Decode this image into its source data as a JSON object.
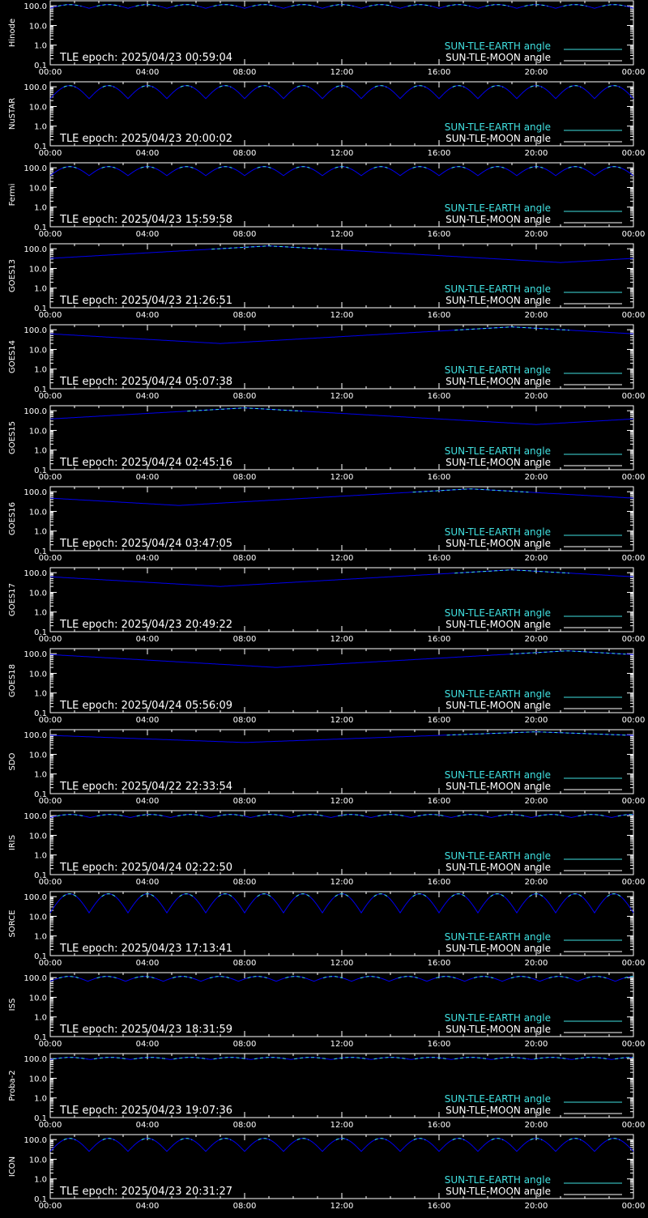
{
  "colors": {
    "background": "#000000",
    "axes": "#ffffff",
    "earth": "#40e0e0",
    "moon": "#ffffff",
    "curve": "#0000ee"
  },
  "chart_data": [
    {
      "type": "line",
      "ylabel": "Hinode",
      "epoch": "TLE epoch: 2025/04/23 00:59:04",
      "kind": "periodic",
      "period_h": 1.6,
      "ymin": 75,
      "ymax": 115
    },
    {
      "type": "line",
      "ylabel": "NuSTAR",
      "epoch": "TLE epoch: 2025/04/23 20:00:02",
      "kind": "periodic",
      "period_h": 1.6,
      "ymin": 25,
      "ymax": 115
    },
    {
      "type": "line",
      "ylabel": "Fermi",
      "epoch": "TLE epoch: 2025/04/23 15:59:58",
      "kind": "periodic",
      "period_h": 1.6,
      "ymin": 40,
      "ymax": 115
    },
    {
      "type": "line",
      "ylabel": "GOES13",
      "epoch": "TLE epoch: 2025/04/23 21:26:51",
      "kind": "daily",
      "min_h": 21.0,
      "ymin": 20,
      "ymax": 140
    },
    {
      "type": "line",
      "ylabel": "GOES14",
      "epoch": "TLE epoch: 2025/04/24 05:07:38",
      "kind": "daily",
      "min_h": 7.0,
      "ymin": 20,
      "ymax": 140
    },
    {
      "type": "line",
      "ylabel": "GOES15",
      "epoch": "TLE epoch: 2025/04/24 02:45:16",
      "kind": "daily",
      "min_h": 20.0,
      "ymin": 20,
      "ymax": 140
    },
    {
      "type": "line",
      "ylabel": "GOES16",
      "epoch": "TLE epoch: 2025/04/24 03:47:05",
      "kind": "daily",
      "min_h": 5.3,
      "ymin": 20,
      "ymax": 140
    },
    {
      "type": "line",
      "ylabel": "GOES17",
      "epoch": "TLE epoch: 2025/04/23 20:49:22",
      "kind": "daily",
      "min_h": 7.0,
      "ymin": 20,
      "ymax": 140
    },
    {
      "type": "line",
      "ylabel": "GOES18",
      "epoch": "TLE epoch: 2025/04/24 05:56:09",
      "kind": "daily",
      "min_h": 9.3,
      "ymin": 20,
      "ymax": 140
    },
    {
      "type": "line",
      "ylabel": "SDO",
      "epoch": "TLE epoch: 2025/04/22 22:33:54",
      "kind": "daily",
      "min_h": 8.0,
      "ymin": 40,
      "ymax": 140
    },
    {
      "type": "line",
      "ylabel": "IRIS",
      "epoch": "TLE epoch: 2025/04/24 02:22:50",
      "kind": "periodic",
      "period_h": 1.65,
      "ymin": 80,
      "ymax": 115
    },
    {
      "type": "line",
      "ylabel": "SORCE",
      "epoch": "TLE epoch: 2025/04/23 17:13:41",
      "kind": "periodic",
      "period_h": 1.6,
      "ymin": 15,
      "ymax": 140
    },
    {
      "type": "line",
      "ylabel": "ISS",
      "epoch": "TLE epoch: 2025/04/23 18:31:59",
      "kind": "periodic",
      "period_h": 1.55,
      "ymin": 65,
      "ymax": 115
    },
    {
      "type": "line",
      "ylabel": "Proba-2",
      "epoch": "TLE epoch: 2025/04/23 19:07:36",
      "kind": "periodic",
      "period_h": 1.65,
      "ymin": 90,
      "ymax": 115
    },
    {
      "type": "line",
      "ylabel": "ICON",
      "epoch": "TLE epoch: 2025/04/23 20:31:27",
      "kind": "periodic",
      "period_h": 1.6,
      "ymin": 25,
      "ymax": 115
    }
  ],
  "shared": {
    "x_ticks": [
      "00:00",
      "04:00",
      "08:00",
      "12:00",
      "16:00",
      "20:00",
      "00:00"
    ],
    "y_ticks": [
      "100.0",
      "10.0",
      "1.0",
      "0.1"
    ],
    "ylim": [
      0.1,
      180
    ],
    "y_scale": "log",
    "legend": {
      "earth": "SUN-TLE-EARTH angle",
      "moon": "SUN-TLE-MOON angle"
    }
  }
}
